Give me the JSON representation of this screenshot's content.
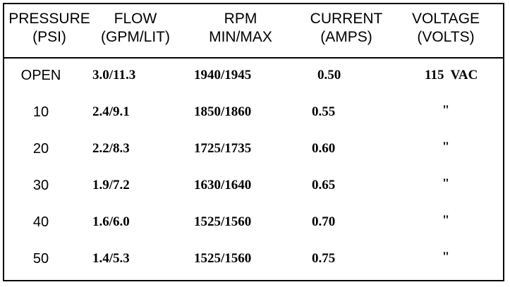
{
  "headers": [
    {
      "line1": "PRESSURE",
      "line2": "(PSI)"
    },
    {
      "line1": "FLOW",
      "line2": "(GPM/LIT)"
    },
    {
      "line1": "RPM",
      "line2": "MIN/MAX"
    },
    {
      "line1": "CURRENT",
      "line2": "(AMPS)"
    },
    {
      "line1": "VOLTAGE",
      "line2": "(VOLTS)"
    }
  ],
  "rows": [
    {
      "pressure": "OPEN",
      "flow": "3.0/11.3",
      "rpm": "1940/1945",
      "current": "0.50",
      "voltage": "115  VAC"
    },
    {
      "pressure": "10",
      "flow": "2.4/9.1",
      "rpm": "1850/1860",
      "current": "0.55",
      "voltage": "\""
    },
    {
      "pressure": "20",
      "flow": "2.2/8.3",
      "rpm": "1725/1735",
      "current": "0.60",
      "voltage": "\""
    },
    {
      "pressure": "30",
      "flow": "1.9/7.2",
      "rpm": "1630/1640",
      "current": "0.65",
      "voltage": "\""
    },
    {
      "pressure": "40",
      "flow": "1.6/6.0",
      "rpm": "1525/1560",
      "current": "0.70",
      "voltage": "\""
    },
    {
      "pressure": "50",
      "flow": "1.4/5.3",
      "rpm": "1525/1560",
      "current": "0.75",
      "voltage": "\""
    }
  ]
}
